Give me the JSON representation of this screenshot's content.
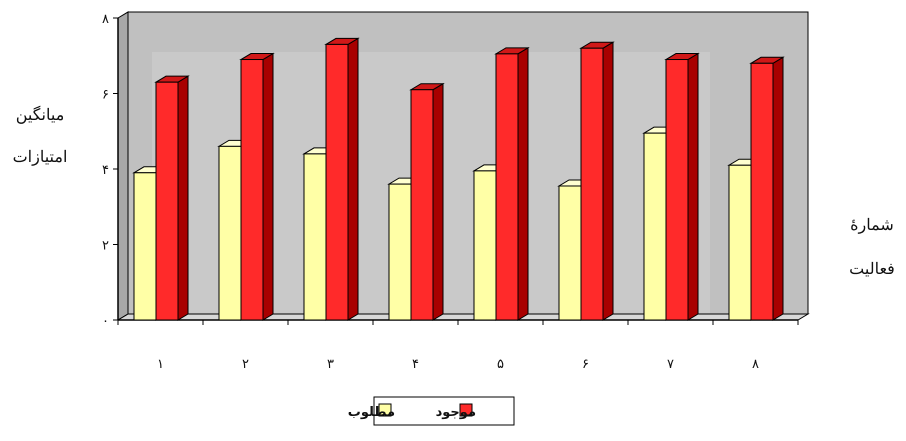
{
  "chart_data": {
    "type": "bar",
    "title": "",
    "ylabel_lines": [
      "میانگین",
      "امتیازات"
    ],
    "xlabel_lines": [
      "شمارهٔ",
      "فعالیت"
    ],
    "categories": [
      "۱",
      "۲",
      "۳",
      "۴",
      "۵",
      "۶",
      "۷",
      "۸"
    ],
    "y_ticks": [
      "۰",
      "۲",
      "۴",
      "۶",
      "۸"
    ],
    "ylim": [
      0,
      8
    ],
    "series": [
      {
        "name": "مطلوب",
        "values": [
          3.9,
          4.6,
          4.4,
          3.6,
          3.95,
          3.55,
          4.95,
          4.1
        ]
      },
      {
        "name": "موجود",
        "values": [
          6.3,
          6.9,
          7.3,
          6.1,
          7.05,
          7.2,
          6.9,
          6.8
        ]
      }
    ],
    "colors": {
      "desired_front": "#ffffa6",
      "desired_side": "#c8c878",
      "desired_top": "#ffffd0",
      "current_front": "#ff2a2a",
      "current_side": "#a80000",
      "current_top": "#d01818",
      "wall": "#c0c0c0",
      "floor": "#d8d8d8"
    },
    "legend_position": "bottom-center",
    "grid": false
  }
}
